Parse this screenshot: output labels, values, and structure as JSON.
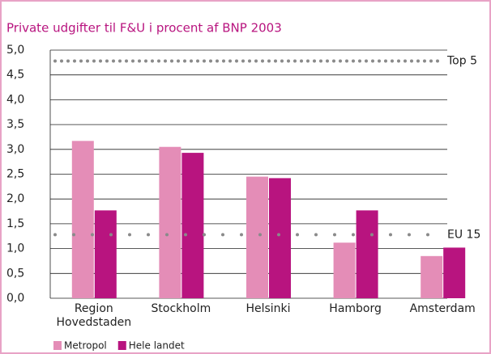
{
  "chart_data": {
    "type": "bar",
    "title": "Private udgifter til F&U i procent af BNP 2003",
    "categories": [
      "Region Hovedstaden",
      "Stockholm",
      "Helsinki",
      "Hamborg",
      "Amsterdam"
    ],
    "series": [
      {
        "name": "Metropol",
        "color": "#e48db7",
        "values": [
          3.17,
          3.05,
          2.45,
          1.12,
          0.85
        ]
      },
      {
        "name": "Hele landet",
        "color": "#b8147f",
        "values": [
          1.77,
          2.93,
          2.42,
          1.77,
          1.02
        ]
      }
    ],
    "reference_lines": [
      {
        "label": "Top 5",
        "value": 4.78
      },
      {
        "label": "EU 15",
        "value": 1.28
      }
    ],
    "ylim": [
      0,
      5
    ],
    "yticks": [
      {
        "value": 0,
        "label": "0,0"
      },
      {
        "value": 0.5,
        "label": "0,5"
      },
      {
        "value": 1,
        "label": "1,0"
      },
      {
        "value": 1.5,
        "label": "1,5"
      },
      {
        "value": 2,
        "label": "2,0"
      },
      {
        "value": 2.5,
        "label": "2,5"
      },
      {
        "value": 3,
        "label": "3,0"
      },
      {
        "value": 3.5,
        "label": "3,5"
      },
      {
        "value": 4,
        "label": "4,0"
      },
      {
        "value": 4.5,
        "label": "4,5"
      },
      {
        "value": 5,
        "label": "5,0"
      }
    ],
    "grid": true
  }
}
